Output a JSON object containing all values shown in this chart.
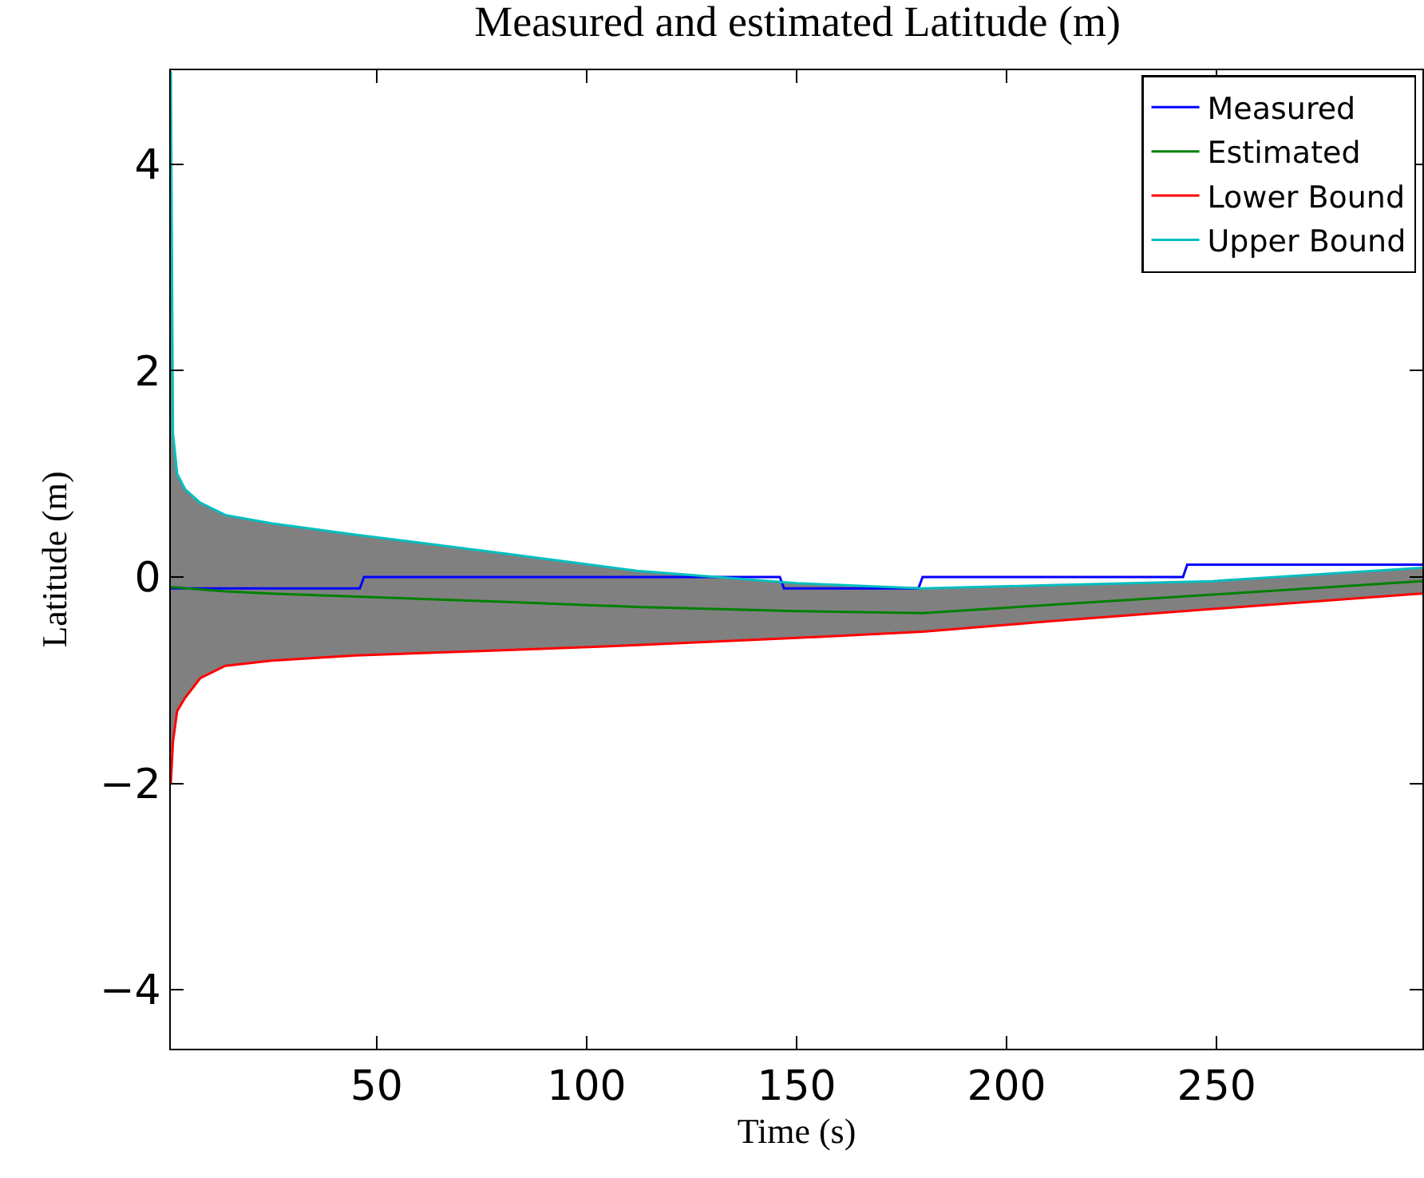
{
  "chart_data": {
    "type": "line",
    "title": "Measured and estimated Latitude (m)",
    "xlabel": "Time (s)",
    "ylabel": "Latitude (m)",
    "x": [
      1,
      1.5,
      2.5,
      4.4,
      8,
      14,
      25,
      45,
      80,
      112,
      150,
      180,
      210,
      249,
      299
    ],
    "series": [
      {
        "name": "Measured",
        "color": "#0000ff",
        "x": [
          1,
          46,
          47,
          146,
          147,
          179,
          180,
          242,
          243,
          299
        ],
        "values": [
          -0.11,
          -0.11,
          0,
          0,
          -0.11,
          -0.11,
          0,
          0,
          0.12,
          0.12
        ]
      },
      {
        "name": "Estimated",
        "color": "#008000",
        "values": [
          -0.1,
          -0.1,
          -0.1,
          -0.11,
          -0.12,
          -0.14,
          -0.16,
          -0.19,
          -0.24,
          -0.29,
          -0.33,
          -0.35,
          -0.27,
          -0.17,
          -0.04
        ],
        "lower": [
          -2.0,
          -1.6,
          -1.3,
          -1.17,
          -0.98,
          -0.86,
          -0.81,
          -0.76,
          -0.71,
          -0.66,
          -0.59,
          -0.53,
          -0.43,
          -0.31,
          -0.16
        ],
        "upper": [
          4.9,
          1.4,
          1.0,
          0.85,
          0.72,
          0.6,
          0.52,
          0.41,
          0.23,
          0.06,
          -0.06,
          -0.11,
          -0.08,
          -0.04,
          0.09
        ]
      },
      {
        "name": "Lower Bound",
        "color": "#ff0000",
        "values": [
          -2.0,
          -1.6,
          -1.3,
          -1.17,
          -0.98,
          -0.86,
          -0.81,
          -0.76,
          -0.71,
          -0.66,
          -0.59,
          -0.53,
          -0.43,
          -0.31,
          -0.16
        ]
      },
      {
        "name": "Upper Bound",
        "color": "#00bfbf",
        "values": [
          4.9,
          1.4,
          1.0,
          0.85,
          0.72,
          0.6,
          0.52,
          0.41,
          0.23,
          0.06,
          -0.06,
          -0.11,
          -0.08,
          -0.04,
          0.09
        ]
      }
    ],
    "xlim": [
      1,
      299
    ],
    "xticks": [
      50,
      100,
      150,
      200,
      250
    ],
    "ylim": [
      -4.57,
      4.91
    ],
    "yticks": [
      {
        "value": -4,
        "label": "−4"
      },
      {
        "value": -2,
        "label": "−2"
      },
      0,
      2,
      4
    ],
    "grid": false,
    "legend": "top right",
    "marker": "none",
    "line_style": "solid"
  }
}
